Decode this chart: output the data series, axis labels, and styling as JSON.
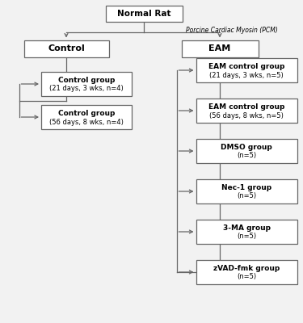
{
  "bg_color": "#f2f2f2",
  "box_color": "white",
  "box_edge_color": "#666666",
  "line_color": "#666666",
  "text_color": "black",
  "title_text": "Normal Rat",
  "pcm_label": "Porcine Cardiac Myosin (PCM)",
  "control_text": "Control",
  "eam_text": "EAM",
  "left_boxes": [
    {
      "line1": "Control group",
      "line2": "(21 days, 3 wks, n=4)"
    },
    {
      "line1": "Control group",
      "line2": "(56 days, 8 wks, n=4)"
    }
  ],
  "right_boxes": [
    {
      "line1": "EAM control group",
      "line2": "(21 days, 3 wks, n=5)"
    },
    {
      "line1": "EAM control group",
      "line2": "(56 days, 8 wks, n=5)"
    },
    {
      "line1": "DMSO group",
      "line2": "(n=5)"
    },
    {
      "line1": "Nec-1 group",
      "line2": "(n=5)"
    },
    {
      "line1": "3-MA group",
      "line2": "(n=5)"
    },
    {
      "line1": "zVAD-fmk group",
      "line2": "(n=5)"
    }
  ]
}
